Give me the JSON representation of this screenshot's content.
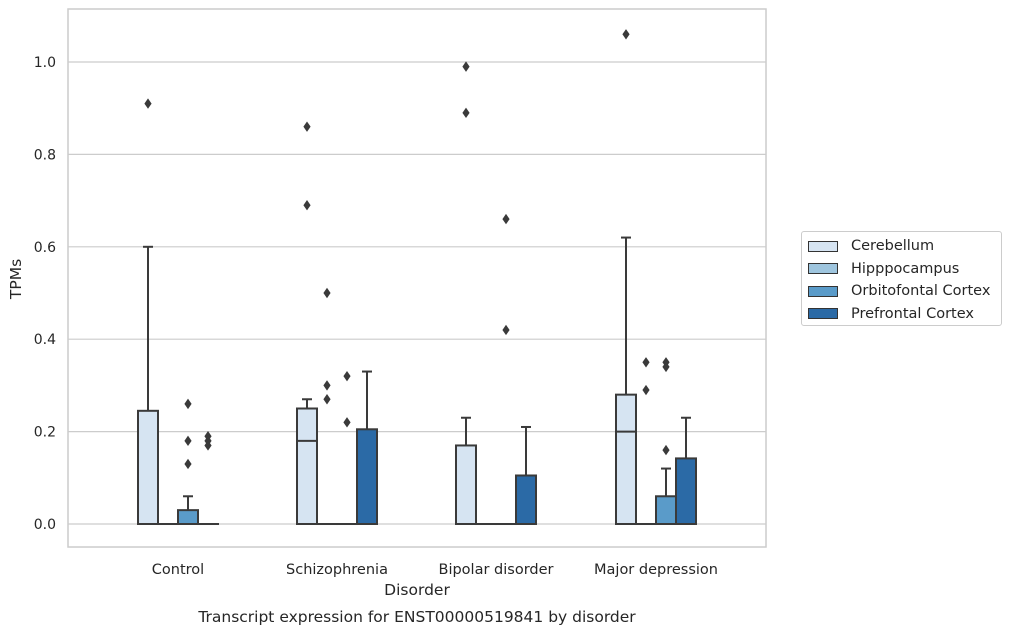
{
  "chart_data": {
    "type": "boxplot",
    "title": "Transcript expression for ENST00000519841 by disorder",
    "xlabel": "Disorder",
    "ylabel": "TPMs",
    "ylim": [
      -0.05,
      1.12
    ],
    "yticks": [
      "0.0",
      "0.2",
      "0.4",
      "0.6",
      "0.8",
      "1.0"
    ],
    "grid": true,
    "legend_position": "right",
    "categories": [
      "Control",
      "Schizophrenia",
      "Bipolar disorder",
      "Major depression"
    ],
    "series": [
      {
        "name": "Cerebellum",
        "color": "#d6e4f2",
        "boxes": [
          {
            "whislo": 0,
            "q1": 0,
            "median": 0,
            "q3": 0.245,
            "whishi": 0.6,
            "fliers": [
              0.91
            ]
          },
          {
            "whislo": 0,
            "q1": 0,
            "median": 0.18,
            "q3": 0.25,
            "whishi": 0.27,
            "fliers": [
              0.86,
              0.69
            ]
          },
          {
            "whislo": 0,
            "q1": 0,
            "median": 0,
            "q3": 0.17,
            "whishi": 0.23,
            "fliers": [
              0.99,
              0.89
            ]
          },
          {
            "whislo": 0,
            "q1": 0,
            "median": 0.2,
            "q3": 0.28,
            "whishi": 0.62,
            "fliers": [
              1.06
            ]
          }
        ]
      },
      {
        "name": "Hipppocampus",
        "color": "#9ec5de",
        "boxes": [
          {
            "whislo": 0,
            "q1": 0,
            "median": 0,
            "q3": 0,
            "whishi": 0,
            "fliers": []
          },
          {
            "whislo": 0,
            "q1": 0,
            "median": 0,
            "q3": 0,
            "whishi": 0,
            "fliers": [
              0.5,
              0.3,
              0.27
            ]
          },
          {
            "whislo": 0,
            "q1": 0,
            "median": 0,
            "q3": 0,
            "whishi": 0,
            "fliers": []
          },
          {
            "whislo": 0,
            "q1": 0,
            "median": 0,
            "q3": 0,
            "whishi": 0,
            "fliers": [
              0.35,
              0.29
            ]
          }
        ]
      },
      {
        "name": "Orbitofontal Cortex",
        "color": "#5a9bc9",
        "boxes": [
          {
            "whislo": 0,
            "q1": 0,
            "median": 0,
            "q3": 0.03,
            "whishi": 0.06,
            "fliers": [
              0.26,
              0.18,
              0.13
            ]
          },
          {
            "whislo": 0,
            "q1": 0,
            "median": 0,
            "q3": 0,
            "whishi": 0,
            "fliers": [
              0.32,
              0.22
            ]
          },
          {
            "whislo": 0,
            "q1": 0,
            "median": 0,
            "q3": 0,
            "whishi": 0,
            "fliers": [
              0.66,
              0.42
            ]
          },
          {
            "whislo": 0,
            "q1": 0,
            "median": 0,
            "q3": 0.06,
            "whishi": 0.12,
            "fliers": [
              0.35,
              0.34,
              0.16
            ]
          }
        ]
      },
      {
        "name": "Prefrontal Cortex",
        "color": "#2b6aa6",
        "boxes": [
          {
            "whislo": 0,
            "q1": 0,
            "median": 0,
            "q3": 0,
            "whishi": 0,
            "fliers": [
              0.19,
              0.18,
              0.17
            ]
          },
          {
            "whislo": 0,
            "q1": 0,
            "median": 0,
            "q3": 0.205,
            "whishi": 0.33,
            "fliers": []
          },
          {
            "whislo": 0,
            "q1": 0,
            "median": 0,
            "q3": 0.105,
            "whishi": 0.21,
            "fliers": []
          },
          {
            "whislo": 0,
            "q1": 0,
            "median": 0,
            "q3": 0.142,
            "whishi": 0.23,
            "fliers": []
          }
        ]
      }
    ]
  }
}
